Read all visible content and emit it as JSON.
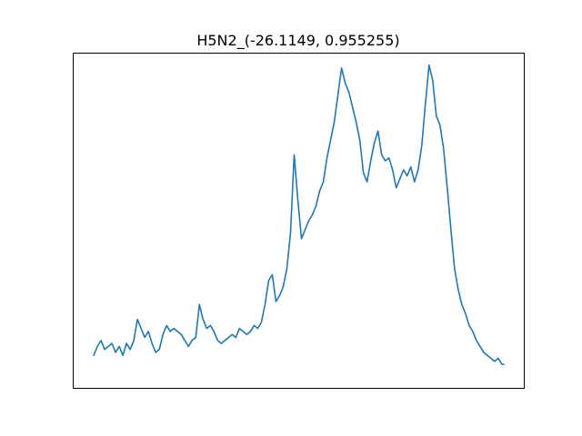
{
  "chart_data": {
    "type": "line",
    "title": "H5N2_(-26.1149, 0.955255)",
    "xlabel": "",
    "ylabel": "",
    "axes_ticks": false,
    "grid": false,
    "legend": "none",
    "xlim": [
      -22.5,
      472.5
    ],
    "ylim": [
      -0.07,
      1.05
    ],
    "series": [
      {
        "color": "#1f77b4",
        "x": [
          0,
          4,
          8,
          12,
          16,
          20,
          24,
          28,
          32,
          36,
          40,
          44,
          48,
          52,
          56,
          60,
          64,
          68,
          72,
          76,
          80,
          84,
          88,
          92,
          96,
          100,
          104,
          108,
          112,
          116,
          120,
          124,
          128,
          132,
          136,
          140,
          144,
          148,
          152,
          156,
          160,
          164,
          168,
          172,
          176,
          180,
          184,
          188,
          192,
          196,
          200,
          204,
          208,
          212,
          216,
          220,
          224,
          228,
          232,
          236,
          240,
          244,
          248,
          252,
          256,
          260,
          264,
          268,
          272,
          276,
          280,
          284,
          288,
          292,
          296,
          300,
          304,
          308,
          312,
          316,
          320,
          324,
          328,
          332,
          336,
          340,
          344,
          348,
          352,
          356,
          360,
          364,
          368,
          372,
          376,
          380,
          384,
          388,
          392,
          396,
          400,
          404,
          408,
          412,
          416,
          420,
          424,
          428,
          432,
          436,
          440,
          444,
          448,
          450
        ],
        "y": [
          0.04,
          0.07,
          0.09,
          0.06,
          0.07,
          0.08,
          0.05,
          0.07,
          0.04,
          0.08,
          0.06,
          0.09,
          0.16,
          0.13,
          0.1,
          0.12,
          0.08,
          0.05,
          0.06,
          0.11,
          0.14,
          0.12,
          0.13,
          0.12,
          0.11,
          0.09,
          0.07,
          0.09,
          0.1,
          0.21,
          0.16,
          0.13,
          0.14,
          0.12,
          0.09,
          0.08,
          0.09,
          0.1,
          0.11,
          0.1,
          0.13,
          0.12,
          0.11,
          0.12,
          0.14,
          0.13,
          0.15,
          0.21,
          0.29,
          0.31,
          0.22,
          0.24,
          0.27,
          0.33,
          0.45,
          0.71,
          0.56,
          0.43,
          0.46,
          0.49,
          0.51,
          0.54,
          0.59,
          0.62,
          0.7,
          0.76,
          0.82,
          0.91,
          1.0,
          0.95,
          0.92,
          0.87,
          0.82,
          0.76,
          0.65,
          0.62,
          0.69,
          0.75,
          0.79,
          0.71,
          0.69,
          0.7,
          0.66,
          0.6,
          0.63,
          0.66,
          0.64,
          0.67,
          0.62,
          0.66,
          0.74,
          0.88,
          1.01,
          0.96,
          0.84,
          0.81,
          0.73,
          0.6,
          0.46,
          0.33,
          0.26,
          0.21,
          0.18,
          0.14,
          0.12,
          0.09,
          0.07,
          0.05,
          0.04,
          0.03,
          0.02,
          0.03,
          0.01,
          0.01
        ]
      }
    ]
  }
}
